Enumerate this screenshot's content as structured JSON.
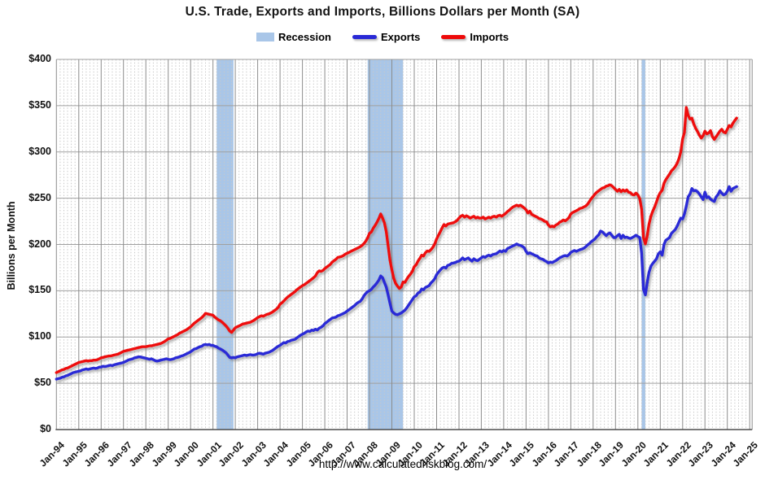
{
  "page": {
    "title": "U.S. Trade, Exports and Imports, Billions Dollars per Month (SA)",
    "footer_url": "http://www.calculatedriskblog.com/"
  },
  "legend": {
    "recession_label": "Recession",
    "exports_label": "Exports",
    "imports_label": "Imports"
  },
  "colors": {
    "recession_band": "#A9C6E8",
    "exports_line": "#2929D6",
    "imports_line": "#EE0A0A"
  },
  "chart_data": {
    "type": "line",
    "title": "U.S. Trade, Exports and Imports, Billions Dollars per Month (SA)",
    "ylabel": "Billions per Month",
    "xlabel": "",
    "ylim": [
      0,
      400
    ],
    "y_tick_step": 50,
    "y_tick_prefix": "$",
    "y_tick_labels": [
      "$0",
      "$50",
      "$100",
      "$150",
      "$200",
      "$250",
      "$300",
      "$350",
      "$400"
    ],
    "x_tick_labels": [
      "Jan-94",
      "Jan-95",
      "Jan-96",
      "Jan-97",
      "Jan-98",
      "Jan-99",
      "Jan-00",
      "Jan-01",
      "Jan-02",
      "Jan-03",
      "Jan-04",
      "Jan-05",
      "Jan-06",
      "Jan-07",
      "Jan-08",
      "Jan-09",
      "Jan-10",
      "Jan-11",
      "Jan-12",
      "Jan-13",
      "Jan-14",
      "Jan-15",
      "Jan-16",
      "Jan-17",
      "Jan-18",
      "Jan-19",
      "Jan-20",
      "Jan-21",
      "Jan-22",
      "Jan-23",
      "Jan-24",
      "Jan-25"
    ],
    "x_start": {
      "year": 1994,
      "month": 1
    },
    "points_per_year": 12,
    "grid": {
      "horizontal": true,
      "vertical_major": true,
      "vertical_minor_per_year": 6
    },
    "legend_position": "top",
    "recession_color": "#A9C6E8",
    "recessions": [
      {
        "start": [
          2001,
          3
        ],
        "end": [
          2001,
          11
        ]
      },
      {
        "start": [
          2007,
          12
        ],
        "end": [
          2009,
          6
        ]
      },
      {
        "start": [
          2020,
          3
        ],
        "end": [
          2020,
          4
        ]
      }
    ],
    "series": [
      {
        "name": "Exports",
        "color": "#2929D6",
        "values": [
          54.5,
          55,
          55.5,
          56.5,
          57,
          58,
          58.5,
          59.5,
          60.5,
          61.5,
          62,
          62.5,
          63,
          63.5,
          64.5,
          65,
          65.5,
          65,
          65.5,
          66,
          66.5,
          66,
          66.5,
          67.5,
          67.5,
          68.5,
          68,
          68.5,
          69,
          69.5,
          69,
          70,
          70.5,
          71,
          71.5,
          72,
          72.5,
          73.5,
          74.5,
          75.5,
          76,
          76.5,
          77.5,
          78,
          78.5,
          78.5,
          78,
          77.5,
          77,
          76.5,
          76,
          76.5,
          75.5,
          74.5,
          74,
          74.5,
          75,
          75.5,
          76,
          76.5,
          76,
          75.5,
          76,
          76.5,
          77.5,
          78,
          78.5,
          79.5,
          80,
          81,
          82,
          83,
          84,
          85.5,
          87,
          87.5,
          88.5,
          89.5,
          90,
          91.5,
          92,
          91.5,
          92,
          91,
          91,
          90,
          89.5,
          88,
          87,
          86,
          84.5,
          83,
          80.5,
          78,
          77.5,
          78,
          77.5,
          78.5,
          79,
          79.5,
          80,
          80.5,
          80,
          80.5,
          81,
          80.5,
          80.5,
          81,
          82,
          82.5,
          82,
          81.5,
          82.5,
          83,
          83.5,
          84.5,
          85.5,
          87,
          88.5,
          90,
          91,
          92.5,
          94,
          93.5,
          95,
          95.5,
          96.5,
          97,
          97.5,
          99,
          100.5,
          102,
          103,
          104,
          105.5,
          106.5,
          106,
          107.5,
          107,
          108.5,
          107.5,
          109.5,
          110.5,
          112,
          114.5,
          116,
          117.5,
          119,
          120.5,
          121,
          121.5,
          123,
          123.5,
          124.5,
          125.5,
          126.5,
          128,
          129.5,
          131,
          132.5,
          134,
          136,
          137.5,
          138.5,
          141,
          144.5,
          147,
          149,
          150,
          151.5,
          154,
          156,
          158.5,
          161.5,
          166,
          164,
          159,
          154,
          145.5,
          136.5,
          128,
          126,
          124.5,
          124,
          125,
          126,
          127.5,
          129,
          131.5,
          134.5,
          137.5,
          140.5,
          143.5,
          144.5,
          147.5,
          148.5,
          152,
          151,
          153.5,
          154.5,
          155.5,
          158.5,
          160.5,
          163,
          167.5,
          170,
          172.5,
          174.5,
          175.5,
          174.5,
          177.5,
          178,
          179.5,
          180,
          180.5,
          181.5,
          182,
          183.5,
          185.5,
          183.5,
          184.5,
          185.5,
          183.5,
          182,
          184.5,
          183,
          182.5,
          184,
          185.5,
          187,
          186,
          187.5,
          188.5,
          187.5,
          189,
          189.5,
          190,
          191.5,
          193,
          192,
          193.5,
          192.5,
          195.5,
          196.5,
          197.5,
          198.5,
          199.5,
          200.5,
          199.5,
          199,
          198,
          196.5,
          192.5,
          190,
          191,
          190,
          189,
          188,
          187.5,
          185.5,
          184.5,
          184,
          182.5,
          181.5,
          180,
          181,
          180.5,
          181.5,
          182.5,
          184,
          185.5,
          186.5,
          187.5,
          188,
          187.5,
          189,
          191.5,
          192.5,
          193.5,
          192.5,
          193.5,
          194.5,
          195,
          196,
          197.5,
          199.5,
          201,
          203,
          204.5,
          206,
          208.5,
          210.5,
          214.5,
          213.5,
          211.5,
          209.5,
          211.5,
          212.5,
          210,
          207.5,
          207.5,
          209.5,
          211,
          206.5,
          210,
          207.5,
          208,
          207,
          206.5,
          207.5,
          208.5,
          210,
          208.5,
          207.5,
          190.5,
          151.5,
          145.5,
          158.5,
          170,
          176.5,
          179.5,
          182,
          184.5,
          190,
          192,
          188.5,
          200,
          204.5,
          206,
          207.5,
          212,
          214,
          216,
          219.5,
          224,
          228.5,
          227.5,
          233,
          241.5,
          251.5,
          254.5,
          260.5,
          258,
          258.5,
          257,
          254.5,
          251.5,
          248.5,
          256.5,
          250.5,
          251.5,
          249,
          247.5,
          246.5,
          251.5,
          254,
          258,
          255.5,
          253.5,
          254.5,
          257.5,
          262.5,
          257.5,
          260.5,
          261.5,
          262.5
        ]
      },
      {
        "name": "Imports",
        "color": "#EE0A0A",
        "values": [
          61.5,
          62.5,
          63.5,
          64.5,
          65,
          66,
          66.5,
          67.5,
          68.5,
          69.5,
          70.5,
          71.5,
          72.5,
          73,
          73.5,
          74,
          74.5,
          74,
          74.5,
          74.5,
          75,
          75,
          75.5,
          76.5,
          77.5,
          78,
          78.5,
          79,
          79.5,
          79.5,
          80,
          80.5,
          81,
          81.5,
          82.5,
          83.5,
          84.5,
          85,
          85.5,
          86,
          86.5,
          87,
          87.5,
          88,
          88.5,
          89,
          89.5,
          89.5,
          89.5,
          90,
          90.5,
          90.5,
          91,
          91.5,
          92,
          92.5,
          93,
          94,
          95,
          96.5,
          98,
          98.5,
          99.5,
          100.5,
          101.5,
          102.5,
          104,
          105,
          106,
          107,
          108,
          109.5,
          111,
          113,
          115,
          116.5,
          118,
          119.5,
          121,
          123,
          125.5,
          125,
          124.5,
          124,
          123.5,
          121.5,
          120,
          118.5,
          117.5,
          116,
          114,
          112,
          109.5,
          106.5,
          105,
          107.5,
          110,
          111,
          112,
          113,
          114,
          114.5,
          115,
          115.5,
          116,
          117,
          118,
          119.5,
          121,
          122,
          123,
          122.5,
          123.5,
          124.5,
          125,
          126,
          127,
          128.5,
          130,
          132,
          135.5,
          137,
          139,
          141,
          143,
          144.5,
          146,
          147.5,
          149,
          151,
          152.5,
          154,
          155.5,
          156.5,
          158,
          159.5,
          161,
          162.5,
          164,
          166,
          169.5,
          171.5,
          171,
          172,
          174,
          175.5,
          177,
          178.5,
          181,
          182.5,
          184,
          186,
          186.5,
          187,
          188,
          189.5,
          190.5,
          191.5,
          192.5,
          193.5,
          194.5,
          195.5,
          196.5,
          197.5,
          199,
          201,
          203.5,
          207,
          212,
          213.5,
          217.5,
          220.5,
          224,
          228,
          233,
          228.5,
          223.5,
          214,
          198.5,
          183,
          172.5,
          163.5,
          158,
          155,
          152.5,
          154,
          159.5,
          159,
          162.5,
          165.5,
          168,
          171,
          176,
          178,
          182,
          185,
          188.5,
          187.5,
          191,
          193,
          192.5,
          194.5,
          197,
          200.5,
          206,
          210,
          214,
          218,
          221.5,
          220,
          222,
          222.5,
          223,
          223.5,
          224.5,
          226,
          228.5,
          230.5,
          231.5,
          229.5,
          231,
          230,
          228.5,
          229.5,
          230.5,
          228.5,
          229.5,
          228.5,
          228.5,
          229.5,
          227.5,
          228.5,
          229.5,
          228.5,
          230,
          230.5,
          229.5,
          231,
          231.5,
          230.5,
          232,
          233.5,
          235.5,
          237,
          239,
          240.5,
          241.5,
          242.5,
          241.5,
          242.5,
          241,
          239.5,
          237.5,
          234,
          236,
          232.5,
          231.5,
          230.5,
          229.5,
          228,
          227.5,
          226.5,
          225,
          224.5,
          221,
          219,
          220,
          219,
          221,
          222,
          224,
          225,
          226.5,
          225.5,
          227,
          229,
          233,
          234.5,
          235.5,
          236.5,
          237.5,
          239,
          239.5,
          240.5,
          241.5,
          243.5,
          246.5,
          249.5,
          252,
          254.5,
          256.5,
          258,
          259.5,
          261,
          261.5,
          263,
          263.5,
          264.5,
          263.5,
          261.5,
          259.5,
          257.5,
          259.5,
          257,
          259,
          257.5,
          259,
          256.5,
          256,
          254,
          253.5,
          255.5,
          253.5,
          249.5,
          238,
          207.5,
          200.5,
          209,
          222,
          230.5,
          236,
          240.5,
          246,
          252,
          256,
          258.5,
          266,
          270,
          273,
          276,
          279.5,
          281.5,
          284,
          287.5,
          292.5,
          300,
          314,
          321,
          348,
          339.5,
          335.5,
          336.5,
          330,
          325.5,
          322,
          318,
          315,
          317.5,
          322.5,
          319.5,
          320.5,
          323,
          316.5,
          313.5,
          316.5,
          319.5,
          322.5,
          324.5,
          321.5,
          320.5,
          324.5,
          328.5,
          327,
          331,
          334,
          336.5
        ]
      }
    ]
  }
}
